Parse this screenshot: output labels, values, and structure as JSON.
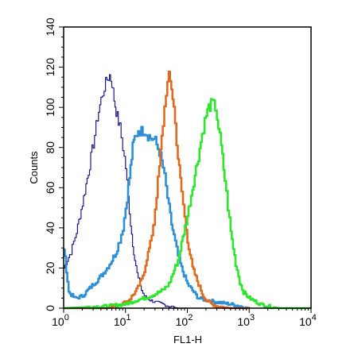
{
  "chart_data": {
    "type": "line",
    "title": "",
    "xlabel": "FL1-H",
    "ylabel": "Counts",
    "xscale": "log",
    "xlim": [
      1,
      10000
    ],
    "ylim": [
      0,
      140
    ],
    "grid": false,
    "legend": "none",
    "x_ticks": [
      {
        "value": 1,
        "base": "10",
        "exp": "0"
      },
      {
        "value": 10,
        "base": "10",
        "exp": "1"
      },
      {
        "value": 100,
        "base": "10",
        "exp": "2"
      },
      {
        "value": 1000,
        "base": "10",
        "exp": "3"
      },
      {
        "value": 10000,
        "base": "10",
        "exp": "4"
      }
    ],
    "y_ticks": [
      0,
      20,
      40,
      60,
      80,
      100,
      120,
      140
    ],
    "series": [
      {
        "color": "#1a1a8c",
        "x": [
          1,
          1.3,
          1.6,
          2.0,
          2.5,
          3.0,
          3.5,
          4.0,
          4.5,
          5.0,
          5.5,
          6.0,
          6.5,
          7.0,
          8.0,
          9.0,
          10,
          11,
          12,
          13,
          14,
          16,
          18,
          20,
          25,
          30,
          40,
          50,
          70,
          100
        ],
        "y": [
          20,
          28,
          38,
          52,
          68,
          82,
          95,
          104,
          110,
          114,
          116,
          112,
          104,
          98,
          90,
          80,
          70,
          55,
          42,
          32,
          24,
          14,
          9,
          6,
          4,
          3,
          2,
          1,
          0,
          0
        ]
      },
      {
        "color": "#2e8fd6",
        "x": [
          1,
          1.2,
          1.5,
          2,
          3,
          4,
          5,
          6,
          7,
          8,
          9,
          10,
          11,
          12,
          13,
          14,
          15,
          16,
          18,
          20,
          22,
          25,
          28,
          30,
          35,
          40,
          45,
          50,
          55,
          60,
          70,
          80,
          100,
          150,
          200,
          300,
          500,
          1000
        ],
        "y": [
          30,
          8,
          5,
          6,
          12,
          16,
          20,
          24,
          28,
          34,
          40,
          50,
          60,
          70,
          80,
          85,
          87,
          89,
          88,
          89,
          87,
          85,
          84,
          83,
          78,
          70,
          60,
          50,
          42,
          36,
          26,
          20,
          12,
          5,
          4,
          3,
          2,
          0
        ]
      },
      {
        "color": "#e06b1e",
        "x": [
          1,
          5,
          10,
          12,
          15,
          18,
          20,
          22,
          25,
          28,
          30,
          35,
          40,
          45,
          50,
          55,
          60,
          70,
          80,
          90,
          100,
          120,
          150,
          180,
          200,
          250,
          300,
          500,
          1000
        ],
        "y": [
          0,
          0,
          3,
          5,
          9,
          14,
          19,
          25,
          32,
          42,
          50,
          70,
          92,
          108,
          115,
          110,
          100,
          75,
          58,
          45,
          34,
          20,
          12,
          6,
          4,
          2,
          1,
          0,
          0
        ]
      },
      {
        "color": "#2ee62e",
        "x": [
          1,
          5,
          10,
          15,
          20,
          30,
          40,
          50,
          70,
          100,
          120,
          150,
          180,
          200,
          220,
          250,
          280,
          300,
          350,
          400,
          450,
          500,
          600,
          700,
          800,
          1000,
          1500,
          2000,
          3000,
          5000,
          10000
        ],
        "y": [
          0,
          1,
          2,
          4,
          5,
          7,
          9,
          12,
          24,
          46,
          60,
          76,
          90,
          96,
          100,
          102,
          100,
          95,
          80,
          64,
          50,
          38,
          22,
          13,
          8,
          5,
          2,
          1,
          0,
          0,
          0
        ]
      }
    ]
  }
}
